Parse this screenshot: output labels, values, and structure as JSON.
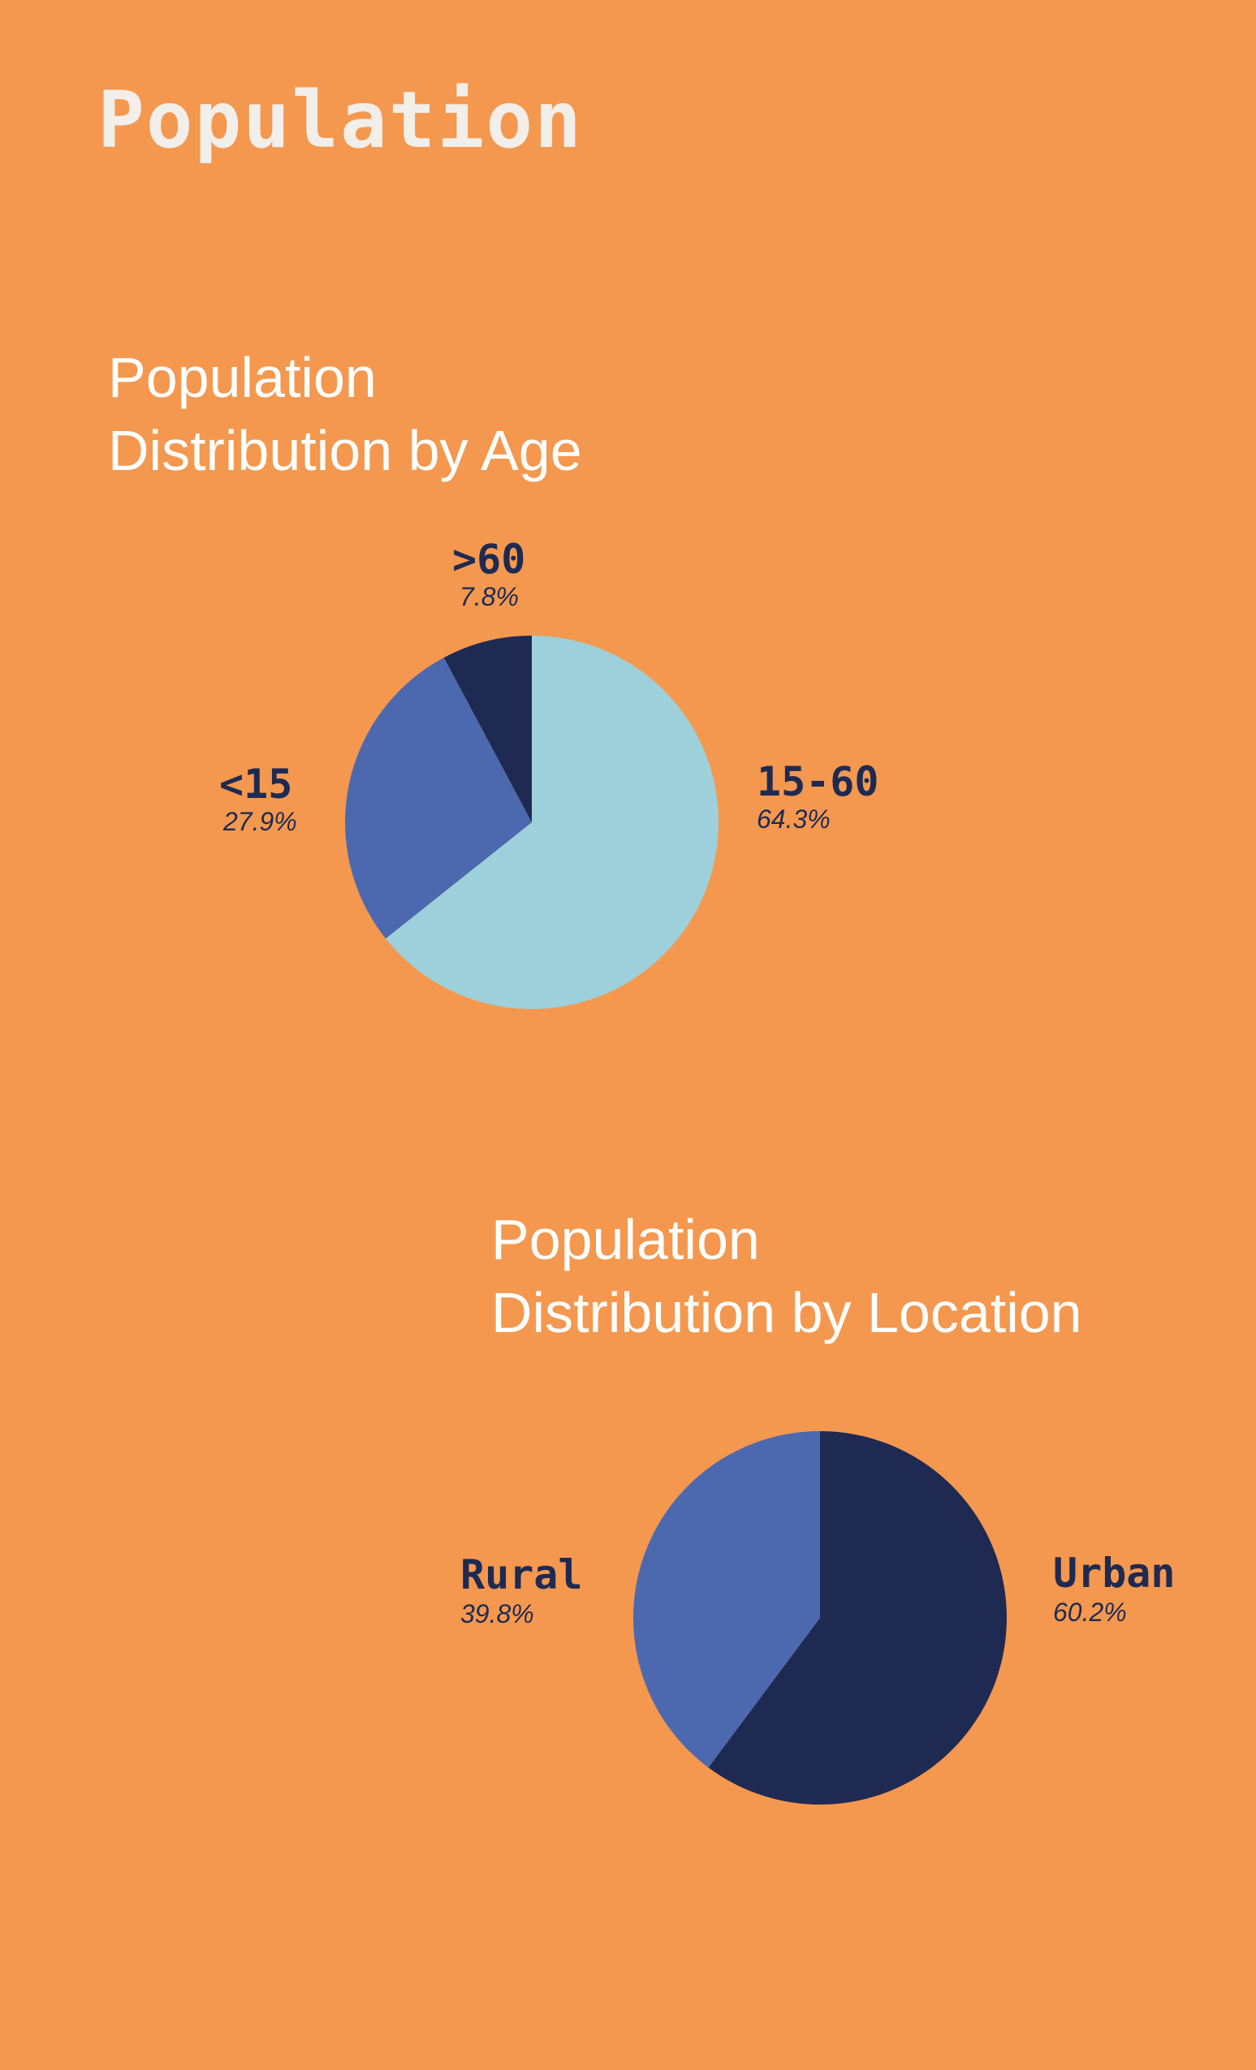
{
  "page": {
    "title": "Population"
  },
  "colors": {
    "background": "#F4984F",
    "light_blue": "#9DD0DA",
    "mid_blue": "#4C69B0",
    "navy": "#1F2A52"
  },
  "chart_data": [
    {
      "type": "pie",
      "title_lines": [
        "Population",
        "Distribution by Age"
      ],
      "slices": [
        {
          "label": "15-60",
          "pct_text": "64.3%",
          "value": 64.3,
          "color": "#9DD0DA"
        },
        {
          "label": "<15",
          "pct_text": "27.9%",
          "value": 27.9,
          "color": "#4C69B0"
        },
        {
          "label": ">60",
          "pct_text": "7.8%",
          "value": 7.8,
          "color": "#1F2A52"
        }
      ]
    },
    {
      "type": "pie",
      "title_lines": [
        "Population",
        "Distribution by Location"
      ],
      "slices": [
        {
          "label": "Urban",
          "pct_text": "60.2%",
          "value": 60.2,
          "color": "#1F2A52"
        },
        {
          "label": "Rural",
          "pct_text": "39.8%",
          "value": 39.8,
          "color": "#4C69B0"
        }
      ]
    }
  ]
}
